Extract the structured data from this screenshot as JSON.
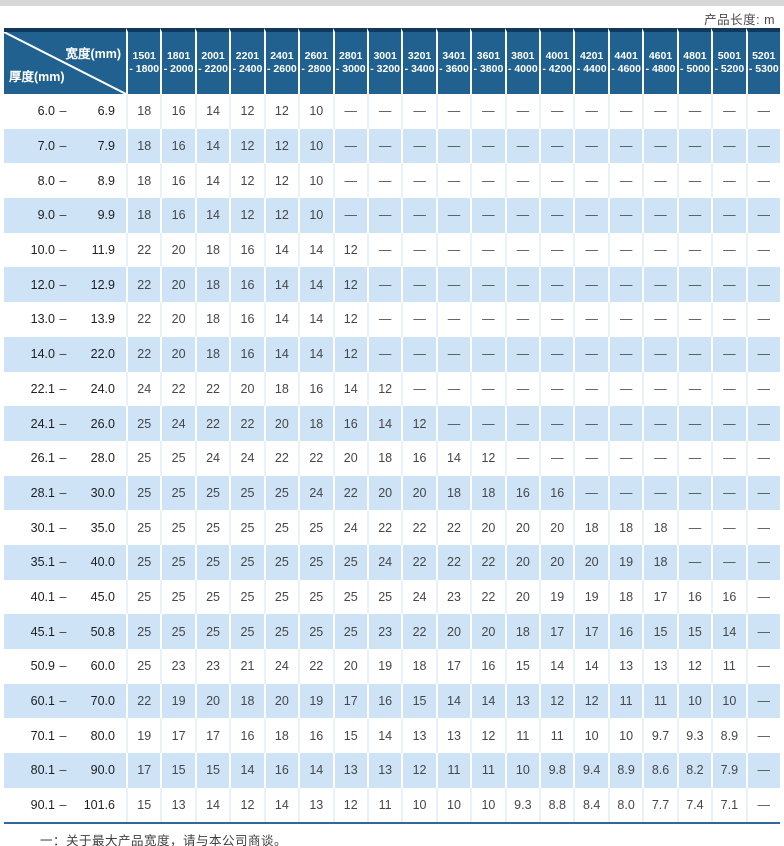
{
  "page": {
    "unit_note": "产品长度: m",
    "footnote": "一：关于最大产品宽度，请与本公司商谈。"
  },
  "colors": {
    "header_blue": "#20618f",
    "header_top_border": "#12395c",
    "row_alt_blue": "#cee3f5",
    "row_white": "#ffffff",
    "bottom_rule": "#2f6899",
    "top_band_gray": "#d8d8d8"
  },
  "table": {
    "corner": {
      "top_right": "宽度(mm)",
      "bottom_left": "厚度(mm)"
    },
    "columns": [
      {
        "line1": "1501",
        "line2": "- 1800"
      },
      {
        "line1": "1801",
        "line2": "- 2000"
      },
      {
        "line1": "2001",
        "line2": "- 2200"
      },
      {
        "line1": "2201",
        "line2": "- 2400"
      },
      {
        "line1": "2401",
        "line2": "- 2600"
      },
      {
        "line1": "2601",
        "line2": "- 2800"
      },
      {
        "line1": "2801",
        "line2": "- 3000"
      },
      {
        "line1": "3001",
        "line2": "- 3200"
      },
      {
        "line1": "3201",
        "line2": "- 3400"
      },
      {
        "line1": "3401",
        "line2": "- 3600"
      },
      {
        "line1": "3601",
        "line2": "- 3800"
      },
      {
        "line1": "3801",
        "line2": "- 4000"
      },
      {
        "line1": "4001",
        "line2": "- 4200"
      },
      {
        "line1": "4201",
        "line2": "- 4400"
      },
      {
        "line1": "4401",
        "line2": "- 4600"
      },
      {
        "line1": "4601",
        "line2": "- 4800"
      },
      {
        "line1": "4801",
        "line2": "- 5000"
      },
      {
        "line1": "5001",
        "line2": "- 5200"
      },
      {
        "line1": "5201",
        "line2": "- 5300"
      }
    ],
    "rows": [
      {
        "lo": "6.0",
        "hi": "6.9",
        "values": [
          "18",
          "16",
          "14",
          "12",
          "12",
          "10",
          "—",
          "—",
          "—",
          "—",
          "—",
          "—",
          "—",
          "—",
          "—",
          "—",
          "—",
          "—",
          "—"
        ]
      },
      {
        "lo": "7.0",
        "hi": "7.9",
        "values": [
          "18",
          "16",
          "14",
          "12",
          "12",
          "10",
          "—",
          "—",
          "—",
          "—",
          "—",
          "—",
          "—",
          "—",
          "—",
          "—",
          "—",
          "—",
          "—"
        ]
      },
      {
        "lo": "8.0",
        "hi": "8.9",
        "values": [
          "18",
          "16",
          "14",
          "12",
          "12",
          "10",
          "—",
          "—",
          "—",
          "—",
          "—",
          "—",
          "—",
          "—",
          "—",
          "—",
          "—",
          "—",
          "—"
        ]
      },
      {
        "lo": "9.0",
        "hi": "9.9",
        "values": [
          "18",
          "16",
          "14",
          "12",
          "12",
          "10",
          "—",
          "—",
          "—",
          "—",
          "—",
          "—",
          "—",
          "—",
          "—",
          "—",
          "—",
          "—",
          "—"
        ]
      },
      {
        "lo": "10.0",
        "hi": "11.9",
        "values": [
          "22",
          "20",
          "18",
          "16",
          "14",
          "14",
          "12",
          "—",
          "—",
          "—",
          "—",
          "—",
          "—",
          "—",
          "—",
          "—",
          "—",
          "—",
          "—"
        ]
      },
      {
        "lo": "12.0",
        "hi": "12.9",
        "values": [
          "22",
          "20",
          "18",
          "16",
          "14",
          "14",
          "12",
          "—",
          "—",
          "—",
          "—",
          "—",
          "—",
          "—",
          "—",
          "—",
          "—",
          "—",
          "—"
        ]
      },
      {
        "lo": "13.0",
        "hi": "13.9",
        "values": [
          "22",
          "20",
          "18",
          "16",
          "14",
          "14",
          "12",
          "—",
          "—",
          "—",
          "—",
          "—",
          "—",
          "—",
          "—",
          "—",
          "—",
          "—",
          "—"
        ]
      },
      {
        "lo": "14.0",
        "hi": "22.0",
        "values": [
          "22",
          "20",
          "18",
          "16",
          "14",
          "14",
          "12",
          "—",
          "—",
          "—",
          "—",
          "—",
          "—",
          "—",
          "—",
          "—",
          "—",
          "—",
          "—"
        ]
      },
      {
        "lo": "22.1",
        "hi": "24.0",
        "values": [
          "24",
          "22",
          "22",
          "20",
          "18",
          "16",
          "14",
          "12",
          "—",
          "—",
          "—",
          "—",
          "—",
          "—",
          "—",
          "—",
          "—",
          "—",
          "—"
        ]
      },
      {
        "lo": "24.1",
        "hi": "26.0",
        "values": [
          "25",
          "24",
          "22",
          "22",
          "20",
          "18",
          "16",
          "14",
          "12",
          "—",
          "—",
          "—",
          "—",
          "—",
          "—",
          "—",
          "—",
          "—",
          "—"
        ]
      },
      {
        "lo": "26.1",
        "hi": "28.0",
        "values": [
          "25",
          "25",
          "24",
          "24",
          "22",
          "22",
          "20",
          "18",
          "16",
          "14",
          "12",
          "—",
          "—",
          "—",
          "—",
          "—",
          "—",
          "—",
          "—"
        ]
      },
      {
        "lo": "28.1",
        "hi": "30.0",
        "values": [
          "25",
          "25",
          "25",
          "25",
          "25",
          "24",
          "22",
          "20",
          "20",
          "18",
          "18",
          "16",
          "16",
          "—",
          "—",
          "—",
          "—",
          "—",
          "—"
        ]
      },
      {
        "lo": "30.1",
        "hi": "35.0",
        "values": [
          "25",
          "25",
          "25",
          "25",
          "25",
          "25",
          "24",
          "22",
          "22",
          "22",
          "20",
          "20",
          "20",
          "18",
          "18",
          "18",
          "—",
          "—",
          "—"
        ]
      },
      {
        "lo": "35.1",
        "hi": "40.0",
        "values": [
          "25",
          "25",
          "25",
          "25",
          "25",
          "25",
          "25",
          "24",
          "22",
          "22",
          "22",
          "20",
          "20",
          "20",
          "19",
          "18",
          "—",
          "—",
          "—"
        ]
      },
      {
        "lo": "40.1",
        "hi": "45.0",
        "values": [
          "25",
          "25",
          "25",
          "25",
          "25",
          "25",
          "25",
          "25",
          "24",
          "23",
          "22",
          "20",
          "19",
          "19",
          "18",
          "17",
          "16",
          "16",
          "—"
        ]
      },
      {
        "lo": "45.1",
        "hi": "50.8",
        "values": [
          "25",
          "25",
          "25",
          "25",
          "25",
          "25",
          "25",
          "23",
          "22",
          "20",
          "20",
          "18",
          "17",
          "17",
          "16",
          "15",
          "15",
          "14",
          "—"
        ]
      },
      {
        "lo": "50.9",
        "hi": "60.0",
        "values": [
          "25",
          "23",
          "23",
          "21",
          "24",
          "22",
          "20",
          "19",
          "18",
          "17",
          "16",
          "15",
          "14",
          "14",
          "13",
          "13",
          "12",
          "11",
          "—"
        ]
      },
      {
        "lo": "60.1",
        "hi": "70.0",
        "values": [
          "22",
          "19",
          "20",
          "18",
          "20",
          "19",
          "17",
          "16",
          "15",
          "14",
          "14",
          "13",
          "12",
          "12",
          "11",
          "11",
          "10",
          "10",
          "—"
        ]
      },
      {
        "lo": "70.1",
        "hi": "80.0",
        "values": [
          "19",
          "17",
          "17",
          "16",
          "18",
          "16",
          "15",
          "14",
          "13",
          "13",
          "12",
          "11",
          "11",
          "10",
          "10",
          "9.7",
          "9.3",
          "8.9",
          "—"
        ]
      },
      {
        "lo": "80.1",
        "hi": "90.0",
        "values": [
          "17",
          "15",
          "15",
          "14",
          "16",
          "14",
          "13",
          "13",
          "12",
          "11",
          "11",
          "10",
          "9.8",
          "9.4",
          "8.9",
          "8.6",
          "8.2",
          "7.9",
          "—"
        ]
      },
      {
        "lo": "90.1",
        "hi": "101.6",
        "values": [
          "15",
          "13",
          "14",
          "12",
          "14",
          "13",
          "12",
          "11",
          "10",
          "10",
          "10",
          "9.3",
          "8.8",
          "8.4",
          "8.0",
          "7.7",
          "7.4",
          "7.1",
          "—"
        ]
      }
    ]
  }
}
